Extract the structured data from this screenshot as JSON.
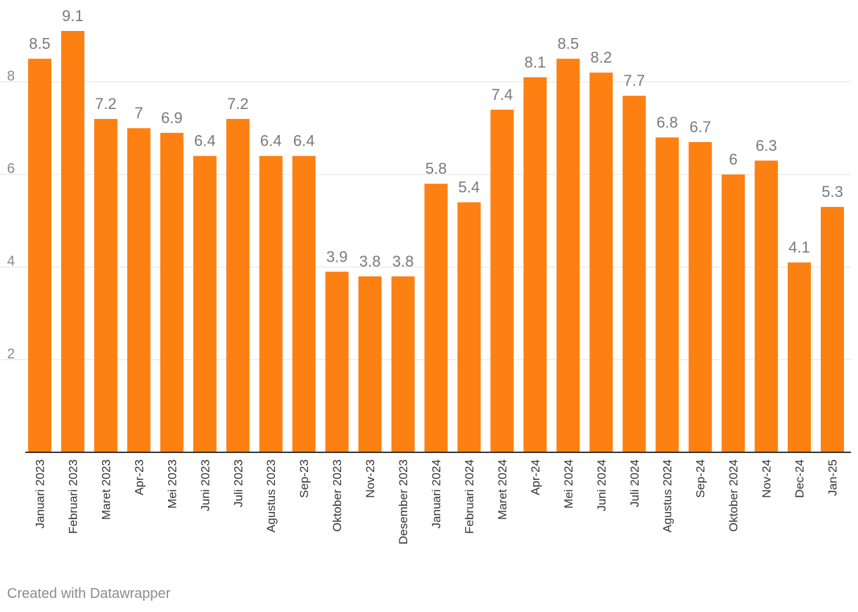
{
  "chart_data": {
    "type": "bar",
    "categories": [
      "Januari 2023",
      "Februari 2023",
      "Maret 2023",
      "Apr-23",
      "Mei 2023",
      "Juni 2023",
      "Juli 2023",
      "Agustus 2023",
      "Sep-23",
      "Oktober 2023",
      "Nov-23",
      "Desember 2023",
      "Januari 2024",
      "Februari 2024",
      "Maret 2024",
      "Apr-24",
      "Mei 2024",
      "Juni 2024",
      "Juli 2024",
      "Agustus 2024",
      "Sep-24",
      "Oktober 2024",
      "Nov-24",
      "Dec-24",
      "Jan-25"
    ],
    "values": [
      8.5,
      9.1,
      7.2,
      7,
      6.9,
      6.4,
      7.2,
      6.4,
      6.4,
      3.9,
      3.8,
      3.8,
      5.8,
      5.4,
      7.4,
      8.1,
      8.5,
      8.2,
      7.7,
      6.8,
      6.7,
      6,
      6.3,
      4.1,
      5.3
    ],
    "value_labels": [
      "8.5",
      "9.1",
      "7.2",
      "7",
      "6.9",
      "6.4",
      "7.2",
      "6.4",
      "6.4",
      "3.9",
      "3.8",
      "3.8",
      "5.8",
      "5.4",
      "7.4",
      "8.1",
      "8.5",
      "8.2",
      "7.7",
      "6.8",
      "6.7",
      "6",
      "6.3",
      "4.1",
      "5.3"
    ],
    "yticks": [
      "2",
      "4",
      "6",
      "8"
    ],
    "ylim": [
      0,
      9.1
    ],
    "grid": true,
    "bar_color": "#fd8012",
    "title": "",
    "xlabel": "",
    "ylabel": ""
  },
  "footer": {
    "credit": "Created with Datawrapper"
  }
}
